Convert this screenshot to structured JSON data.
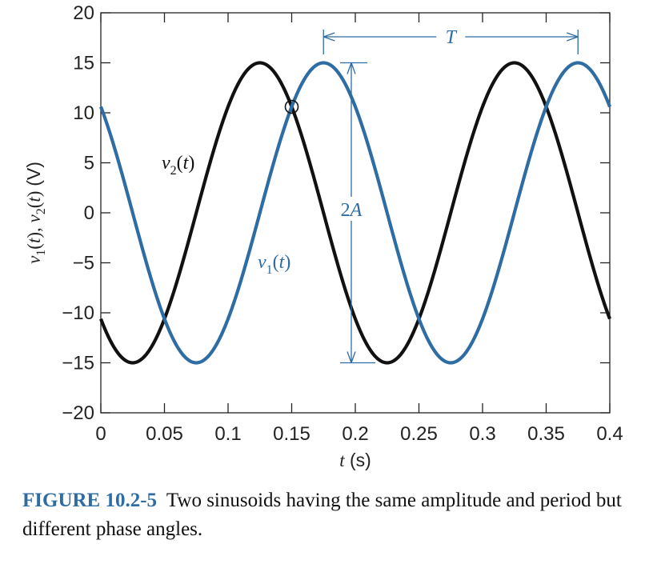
{
  "chart_data": {
    "type": "line",
    "xlabel": "t (s)",
    "ylabel": "v1(t), v2(t) (V)",
    "xlim": [
      0,
      0.4
    ],
    "ylim": [
      -20,
      20
    ],
    "x_ticks": [
      "0",
      "0.05",
      "0.1",
      "0.15",
      "0.2",
      "0.25",
      "0.3",
      "0.35",
      "0.4"
    ],
    "y_ticks": [
      "20",
      "15",
      "10",
      "5",
      "0",
      "−5",
      "−10",
      "−15",
      "−20"
    ],
    "x_tick_values": [
      0,
      0.05,
      0.1,
      0.15,
      0.2,
      0.25,
      0.3,
      0.35,
      0.4
    ],
    "y_tick_values": [
      20,
      15,
      10,
      5,
      0,
      -5,
      -10,
      -15,
      -20
    ],
    "series": [
      {
        "name": "v1(t)",
        "color": "#2e6ca4",
        "amplitude": 15,
        "period": 0.2,
        "peak_times": [
          0.175,
          0.375
        ],
        "x": [
          0,
          0.025,
          0.05,
          0.075,
          0.1,
          0.125,
          0.15,
          0.175,
          0.2,
          0.225,
          0.25,
          0.275,
          0.3,
          0.325,
          0.35,
          0.375,
          0.4
        ],
        "values": [
          10.6,
          0,
          -10.6,
          -15,
          -10.6,
          0,
          10.6,
          15,
          10.6,
          0,
          -10.6,
          -15,
          -10.6,
          0,
          10.6,
          15,
          10.6
        ]
      },
      {
        "name": "v2(t)",
        "color": "#111111",
        "amplitude": 15,
        "period": 0.2,
        "peak_times": [
          0.125,
          0.325
        ],
        "x": [
          0,
          0.025,
          0.05,
          0.075,
          0.1,
          0.125,
          0.15,
          0.175,
          0.2,
          0.225,
          0.25,
          0.275,
          0.3,
          0.325,
          0.35,
          0.375,
          0.4
        ],
        "values": [
          -10.6,
          -15,
          -10.6,
          0,
          10.6,
          15,
          10.6,
          0,
          -10.6,
          -15,
          -10.6,
          0,
          10.6,
          15,
          10.6,
          0,
          -10.6
        ]
      }
    ],
    "annotations": {
      "period_label": "T",
      "period_from": 0.175,
      "period_to": 0.375,
      "amplitude_label": "2A",
      "amplitude_at": 0.2,
      "amplitude_from": -15,
      "amplitude_to": 15,
      "crossing_marker": {
        "x": 0.15,
        "y": 10.6
      },
      "v1_label": "v1(t)",
      "v2_label": "v2(t)"
    },
    "grid": false,
    "legend": "none"
  },
  "caption": {
    "label": "FIGURE 10.2-5",
    "text": "Two sinusoids having the same amplitude and period but different phase angles."
  },
  "colors": {
    "accent": "#2e6ca4",
    "ink": "#111111"
  }
}
